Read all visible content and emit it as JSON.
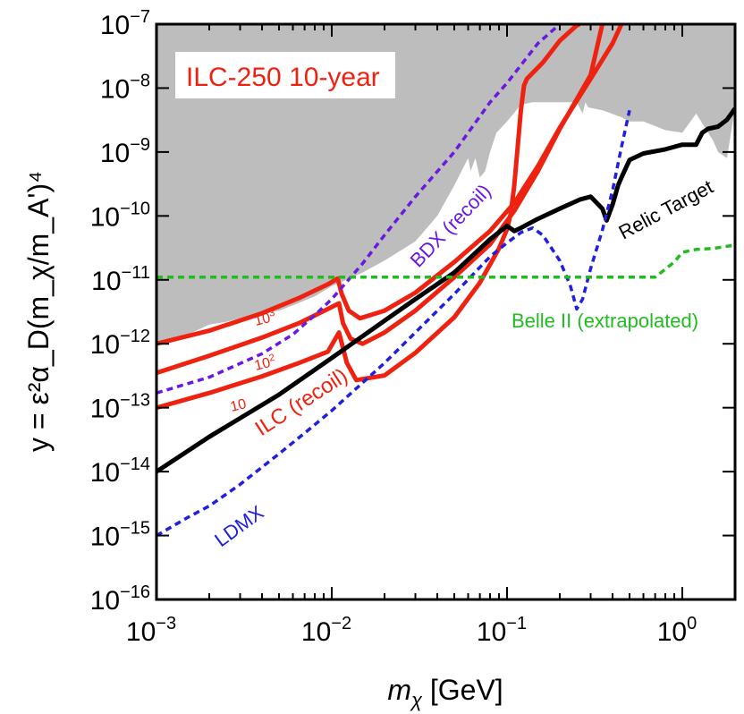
{
  "chart_data": {
    "type": "line",
    "title": "ILC-250 10-year",
    "xlabel": {
      "math": "m",
      "sub": "χ",
      "unit": " [GeV]"
    },
    "ylabel": "y = ε²α_D(m_χ/m_A')⁴",
    "xscale": "log",
    "yscale": "log",
    "xlim": [
      0.001,
      2.0
    ],
    "ylim": [
      1e-16,
      1e-07
    ],
    "x_ticks": [
      {
        "value": 0.001,
        "base": "10",
        "exp": "−3"
      },
      {
        "value": 0.01,
        "base": "10",
        "exp": "−2"
      },
      {
        "value": 0.1,
        "base": "10",
        "exp": "−1"
      },
      {
        "value": 1,
        "base": "10",
        "exp": "0"
      }
    ],
    "y_ticks": [
      {
        "value": 1e-16,
        "base": "10",
        "exp": "−16"
      },
      {
        "value": 1e-15,
        "base": "10",
        "exp": "−15"
      },
      {
        "value": 1e-14,
        "base": "10",
        "exp": "−14"
      },
      {
        "value": 1e-13,
        "base": "10",
        "exp": "−13"
      },
      {
        "value": 1e-12,
        "base": "10",
        "exp": "−12"
      },
      {
        "value": 1e-11,
        "base": "10",
        "exp": "−11"
      },
      {
        "value": 1e-10,
        "base": "10",
        "exp": "−10"
      },
      {
        "value": 1e-09,
        "base": "10",
        "exp": "−9"
      },
      {
        "value": 1e-08,
        "base": "10",
        "exp": "−8"
      },
      {
        "value": 1e-07,
        "base": "10",
        "exp": "−7"
      }
    ],
    "excluded_region": {
      "name": "excluded",
      "color": "#bdbdbd",
      "boundary_x": [
        0.001,
        0.00135,
        0.0016,
        0.002,
        0.0025,
        0.003,
        0.004,
        0.005,
        0.006,
        0.008,
        0.01,
        0.015,
        0.02,
        0.03,
        0.04,
        0.05,
        0.06,
        0.062,
        0.066,
        0.07,
        0.075,
        0.08,
        0.087,
        0.1,
        0.12,
        0.14,
        0.18,
        0.25,
        0.27,
        0.28,
        0.29,
        0.35,
        0.45,
        0.5,
        0.6,
        0.8,
        1.0,
        1.2,
        1.5,
        1.6,
        1.8,
        2.0
      ],
      "boundary_y": [
        1e-12,
        1.3e-12,
        1.5e-12,
        2e-12,
        2.2e-12,
        2.5e-12,
        3e-12,
        3.3e-12,
        4e-12,
        5.5e-12,
        8e-12,
        1.3e-11,
        2e-11,
        4e-11,
        1e-10,
        3e-10,
        8e-10,
        5e-10,
        8e-10,
        4e-10,
        5e-10,
        1e-09,
        2e-09,
        3e-09,
        5.5e-09,
        6e-09,
        6e-09,
        6e-09,
        4e-09,
        6e-09,
        5e-09,
        4.5e-09,
        3.5e-09,
        3e-09,
        3e-09,
        2.2e-09,
        2e-09,
        4e-09,
        1.5e-09,
        1e-09,
        8e-10,
        5e-09
      ]
    },
    "series": [
      {
        "name": "ILC 10^3",
        "color": "#ee2211",
        "style": "solid",
        "width": 5,
        "x": [
          0.001,
          0.002,
          0.004,
          0.0065,
          0.0095,
          0.0108,
          0.0114,
          0.0125,
          0.0145,
          0.02,
          0.03,
          0.05,
          0.08,
          0.11,
          0.15,
          0.2,
          0.3,
          0.4,
          0.45
        ],
        "y": [
          1e-12,
          1.6e-12,
          3e-12,
          5.2e-12,
          8.5e-12,
          1.05e-11,
          6e-12,
          3.3e-12,
          2.5e-12,
          3.3e-12,
          6.3e-12,
          1.9e-11,
          5.8e-11,
          1.6e-10,
          6e-10,
          2.4e-09,
          1.4e-08,
          5e-08,
          1e-07
        ]
      },
      {
        "name": "ILC 10^2",
        "color": "#ee2211",
        "style": "solid",
        "width": 5,
        "x": [
          0.001,
          0.002,
          0.004,
          0.0065,
          0.0095,
          0.011,
          0.0116,
          0.0128,
          0.015,
          0.02,
          0.03,
          0.05,
          0.08,
          0.11,
          0.15,
          0.2,
          0.3,
          0.35
        ],
        "y": [
          3.5e-13,
          6.5e-13,
          1.25e-12,
          2.1e-12,
          3.5e-12,
          4.3e-12,
          2.1e-12,
          1.2e-12,
          1e-12,
          1.5e-12,
          3.3e-12,
          1.1e-11,
          3.6e-11,
          1.2e-10,
          5e-10,
          2.3e-09,
          1.6e-08,
          1e-07
        ]
      },
      {
        "name": "ILC 10",
        "color": "#ee2211",
        "style": "solid",
        "width": 5,
        "x": [
          0.001,
          0.002,
          0.004,
          0.0065,
          0.0095,
          0.011,
          0.0122,
          0.0138,
          0.02,
          0.03,
          0.05,
          0.07,
          0.09,
          0.1,
          0.105,
          0.11,
          0.115,
          0.12,
          0.125,
          0.13,
          0.16,
          0.2,
          0.25,
          0.26
        ],
        "y": [
          1e-13,
          1.7e-13,
          3.1e-13,
          5e-13,
          7.5e-13,
          1.5e-12,
          5e-13,
          2.7e-13,
          3.2e-13,
          7.2e-13,
          2.6e-12,
          9e-12,
          3.1e-11,
          6.2e-11,
          1.1e-10,
          3e-10,
          1.2e-09,
          4.5e-09,
          1.1e-08,
          1.4e-08,
          2.5e-08,
          5.5e-08,
          9.6e-08,
          1e-07
        ]
      },
      {
        "name": "Relic Target",
        "color": "#000000",
        "style": "solid",
        "width": 5,
        "x": [
          0.001,
          0.002,
          0.005,
          0.01,
          0.02,
          0.03,
          0.05,
          0.08,
          0.1,
          0.11,
          0.12,
          0.15,
          0.2,
          0.26,
          0.3,
          0.35,
          0.37,
          0.4,
          0.43,
          0.45,
          0.5,
          0.6,
          0.8,
          1.0,
          1.2,
          1.3,
          1.4,
          1.6,
          1.8,
          2.0
        ],
        "y": [
          1e-14,
          3.5e-14,
          1.6e-13,
          6e-13,
          2.3e-12,
          5e-12,
          1.3e-11,
          4.3e-11,
          7e-11,
          5.8e-11,
          6.5e-11,
          9e-11,
          1.3e-10,
          1.8e-10,
          2e-10,
          1.3e-10,
          8.5e-11,
          1.5e-10,
          3e-10,
          4e-10,
          7.5e-10,
          9.5e-10,
          1.1e-09,
          1.3e-09,
          1.3e-09,
          2e-09,
          2.3e-09,
          2.5e-09,
          3.2e-09,
          4.8e-09
        ]
      },
      {
        "name": "LDMX",
        "color": "#2020dd",
        "style": "dashed",
        "width": 3.5,
        "x": [
          0.001,
          0.0015,
          0.002,
          0.003,
          0.005,
          0.007,
          0.01,
          0.02,
          0.03,
          0.05,
          0.08,
          0.1,
          0.12,
          0.14,
          0.16,
          0.2,
          0.23,
          0.25,
          0.27,
          0.3,
          0.35,
          0.4,
          0.45,
          0.5
        ],
        "y": [
          1e-15,
          1.9e-15,
          2.9e-15,
          6.3e-15,
          1.9e-14,
          4e-14,
          9e-14,
          5e-13,
          1.5e-12,
          6e-12,
          2.3e-11,
          3.8e-11,
          5.5e-11,
          6.5e-11,
          5e-11,
          2e-11,
          8e-12,
          3.5e-12,
          5e-12,
          1.5e-11,
          6e-11,
          2.5e-10,
          1.2e-09,
          4.5e-09
        ]
      },
      {
        "name": "BDX (recoil)",
        "color": "#6a1ae0",
        "style": "dashed",
        "width": 3.5,
        "x": [
          0.001,
          0.002,
          0.004,
          0.006,
          0.008,
          0.01,
          0.015,
          0.02,
          0.03,
          0.05,
          0.08,
          0.1,
          0.15,
          0.2
        ],
        "y": [
          1.7e-13,
          3e-13,
          7e-13,
          1.4e-12,
          2.8e-12,
          5e-12,
          1.8e-11,
          5e-11,
          2e-10,
          1e-09,
          6e-09,
          1.2e-08,
          5e-08,
          1e-07
        ]
      },
      {
        "name": "Belle II (extrapolated)",
        "color": "#22bb22",
        "style": "dashed",
        "width": 3.5,
        "x": [
          0.001,
          0.01,
          0.1,
          0.5,
          0.7,
          0.9,
          1.0,
          1.2,
          1.5,
          2.0
        ],
        "y": [
          1.1e-11,
          1.1e-11,
          1.1e-11,
          1.1e-11,
          1.1e-11,
          1.9e-11,
          2.7e-11,
          3e-11,
          3.1e-11,
          3.5e-11
        ]
      }
    ],
    "annotations": [
      {
        "text": "ILC-250 10-year",
        "role": "title-box",
        "color": "#ee2211"
      },
      {
        "text": "BDX (recoil)",
        "color": "#6a1ae0"
      },
      {
        "text": "Relic Target",
        "color": "#000000"
      },
      {
        "text": "Belle II (extrapolated)",
        "color": "#22bb22"
      },
      {
        "text": "ILC (recoil)",
        "color": "#ee2211"
      },
      {
        "text": "LDMX",
        "color": "#2020dd"
      },
      {
        "text": "10",
        "sup": "3",
        "color": "#ee2211"
      },
      {
        "text": "10",
        "sup": "2",
        "color": "#ee2211"
      },
      {
        "text": "10",
        "sup": "",
        "color": "#ee2211"
      }
    ]
  }
}
